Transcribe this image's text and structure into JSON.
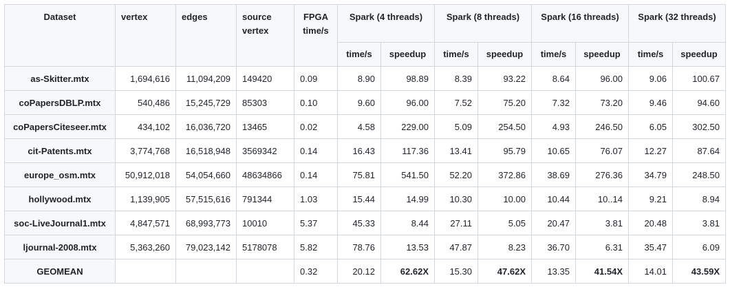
{
  "table": {
    "headers": {
      "dataset": "Dataset",
      "vertex": "vertex",
      "edges": "edges",
      "source_vertex": "source vertex",
      "fpga_time": "FPGA time/s",
      "groups": [
        {
          "label": "Spark (4 threads)"
        },
        {
          "label": "Spark (8 threads)"
        },
        {
          "label": "Spark (16 threads)"
        },
        {
          "label": "Spark (32 threads)"
        }
      ],
      "sub_time": "time/s",
      "sub_speedup": "speedup"
    },
    "rows": [
      {
        "dataset": "as-Skitter.mtx",
        "vertex": "1,694,616",
        "edges": "11,094,209",
        "source": "149420",
        "fpga": "0.09",
        "s4_time": "8.90",
        "s4_speedup": "98.89",
        "s8_time": "8.39",
        "s8_speedup": "93.22",
        "s16_time": "8.64",
        "s16_speedup": "96.00",
        "s32_time": "9.06",
        "s32_speedup": "100.67"
      },
      {
        "dataset": "coPapersDBLP.mtx",
        "vertex": "540,486",
        "edges": "15,245,729",
        "source": "85303",
        "fpga": "0.10",
        "s4_time": "9.60",
        "s4_speedup": "96.00",
        "s8_time": "7.52",
        "s8_speedup": "75.20",
        "s16_time": "7.32",
        "s16_speedup": "73.20",
        "s32_time": "9.46",
        "s32_speedup": "94.60"
      },
      {
        "dataset": "coPapersCiteseer.mtx",
        "vertex": "434,102",
        "edges": "16,036,720",
        "source": "13465",
        "fpga": "0.02",
        "s4_time": "4.58",
        "s4_speedup": "229.00",
        "s8_time": "5.09",
        "s8_speedup": "254.50",
        "s16_time": "4.93",
        "s16_speedup": "246.50",
        "s32_time": "6.05",
        "s32_speedup": "302.50"
      },
      {
        "dataset": "cit-Patents.mtx",
        "vertex": "3,774,768",
        "edges": "16,518,948",
        "source": "3569342",
        "fpga": "0.14",
        "s4_time": "16.43",
        "s4_speedup": "117.36",
        "s8_time": "13.41",
        "s8_speedup": "95.79",
        "s16_time": "10.65",
        "s16_speedup": "76.07",
        "s32_time": "12.27",
        "s32_speedup": "87.64"
      },
      {
        "dataset": "europe_osm.mtx",
        "vertex": "50,912,018",
        "edges": "54,054,660",
        "source": "48634866",
        "fpga": "0.14",
        "s4_time": "75.81",
        "s4_speedup": "541.50",
        "s8_time": "52.20",
        "s8_speedup": "372.86",
        "s16_time": "38.69",
        "s16_speedup": "276.36",
        "s32_time": "34.79",
        "s32_speedup": "248.50"
      },
      {
        "dataset": "hollywood.mtx",
        "vertex": "1,139,905",
        "edges": "57,515,616",
        "source": "791344",
        "fpga": "1.03",
        "s4_time": "15.44",
        "s4_speedup": "14.99",
        "s8_time": "10.30",
        "s8_speedup": "10.00",
        "s16_time": "10.44",
        "s16_speedup": "10..14",
        "s32_time": "9.21",
        "s32_speedup": "8.94"
      },
      {
        "dataset": "soc-LiveJournal1.mtx",
        "vertex": "4,847,571",
        "edges": "68,993,773",
        "source": "10010",
        "fpga": "5.37",
        "s4_time": "45.33",
        "s4_speedup": "8.44",
        "s8_time": "27.11",
        "s8_speedup": "5.05",
        "s16_time": "20.47",
        "s16_speedup": "3.81",
        "s32_time": "20.48",
        "s32_speedup": "3.81"
      },
      {
        "dataset": "ljournal-2008.mtx",
        "vertex": "5,363,260",
        "edges": "79,023,142",
        "source": "5178078",
        "fpga": "5.82",
        "s4_time": "78.76",
        "s4_speedup": "13.53",
        "s8_time": "47.87",
        "s8_speedup": "8.23",
        "s16_time": "36.70",
        "s16_speedup": "6.31",
        "s32_time": "35.47",
        "s32_speedup": "6.09"
      }
    ],
    "geomean": {
      "label": "GEOMEAN",
      "vertex": "",
      "edges": "",
      "source": "",
      "fpga": "0.32",
      "s4_time": "20.12",
      "s4_speedup": "62.62X",
      "s8_time": "15.30",
      "s8_speedup": "47.62X",
      "s16_time": "13.35",
      "s16_speedup": "41.54X",
      "s32_time": "14.01",
      "s32_speedup": "43.59X"
    }
  },
  "colors": {
    "header_bg": "#f6f8fa",
    "border": "#d0d7de",
    "text": "#1f2328"
  }
}
